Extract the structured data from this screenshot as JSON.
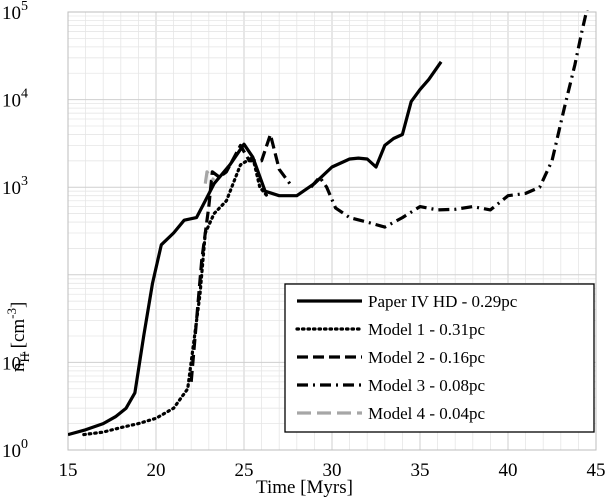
{
  "chart_data": {
    "type": "line",
    "title": "",
    "xlabel": "Time [Myrs]",
    "ylabel": "n_H [cm^-3]",
    "ylabel_parts": {
      "base": "n",
      "sub": "H",
      "unit": "[cm",
      "sup": "-3",
      "close": "]"
    },
    "xlim": [
      15,
      45
    ],
    "ylim": [
      1,
      100000
    ],
    "yscale": "log",
    "grid": true,
    "legend_position": "lower-right",
    "x_ticks": [
      15,
      20,
      25,
      30,
      35,
      40,
      45
    ],
    "x_tick_labels": [
      "15",
      "20",
      "25",
      "30",
      "35",
      "40",
      "45"
    ],
    "y_ticks": [
      1,
      10,
      1000,
      10000,
      100000
    ],
    "y_tick_labels": [
      {
        "base": "10",
        "sup": "0"
      },
      {
        "base": "10",
        "sup": "1"
      },
      {
        "base": "10",
        "sup": "3"
      },
      {
        "base": "10",
        "sup": "4"
      },
      {
        "base": "10",
        "sup": "5"
      }
    ],
    "series": [
      {
        "name": "Paper IV HD - 0.29pc",
        "color": "#000000",
        "dash": "solid",
        "x": [
          15,
          16,
          17,
          17.7,
          18.3,
          18.8,
          19.3,
          19.8,
          20.3,
          21,
          21.6,
          22.3,
          22.8,
          23.3,
          24.2,
          25,
          25.5,
          26.2,
          27,
          28,
          29,
          30,
          31,
          31.5,
          32,
          32.5,
          33,
          33.5,
          34,
          34.5,
          35,
          35.5,
          36.2
        ],
        "y": [
          1.5,
          1.7,
          2.0,
          2.4,
          3.0,
          4.5,
          20,
          80,
          220,
          300,
          420,
          450,
          700,
          1100,
          1800,
          3100,
          2200,
          900,
          800,
          800,
          1100,
          1700,
          2100,
          2150,
          2100,
          1700,
          3000,
          3600,
          4000,
          9500,
          13000,
          17000,
          27000
        ]
      },
      {
        "name": "Model 1 - 0.31pc",
        "color": "#000000",
        "dash": "dotted",
        "x": [
          15.9,
          17,
          18,
          19,
          20,
          21,
          21.8,
          22.5,
          22.8,
          23.3,
          24,
          24.8,
          25.5,
          25.9,
          26.3
        ],
        "y": [
          1.5,
          1.6,
          1.8,
          2.0,
          2.3,
          3.0,
          5.0,
          60,
          300,
          500,
          700,
          1800,
          2200,
          1000,
          800
        ]
      },
      {
        "name": "Model 2 - 0.16pc",
        "color": "#000000",
        "dash": "dashed",
        "x": [
          22,
          22.3,
          22.6,
          23,
          23.2,
          23.6,
          24,
          24.8,
          25.3,
          26,
          26.5,
          27,
          27.6
        ],
        "y": [
          6,
          30,
          150,
          600,
          1500,
          1300,
          1500,
          3000,
          2000,
          2000,
          4000,
          1600,
          1100
        ]
      },
      {
        "name": "Model 3 - 0.08pc",
        "color": "#000000",
        "dash": "dashdot",
        "x": [
          28.8,
          29.3,
          29.7,
          30.2,
          31,
          32,
          33,
          34,
          35,
          36,
          37,
          38,
          39,
          40,
          41,
          41.8,
          42.5,
          43.2,
          43.8,
          44.2,
          44.5
        ],
        "y": [
          1000,
          1300,
          1000,
          580,
          450,
          400,
          350,
          450,
          600,
          550,
          560,
          600,
          550,
          800,
          850,
          1000,
          2000,
          8000,
          25000,
          60000,
          110000
        ]
      },
      {
        "name": "Model 4 - 0.04pc",
        "color": "#a6a6a6",
        "dash": "longdash",
        "x": [
          22.8,
          22.9,
          23.1,
          23.3
        ],
        "y": [
          1100,
          1500,
          1300,
          1200
        ]
      }
    ]
  }
}
